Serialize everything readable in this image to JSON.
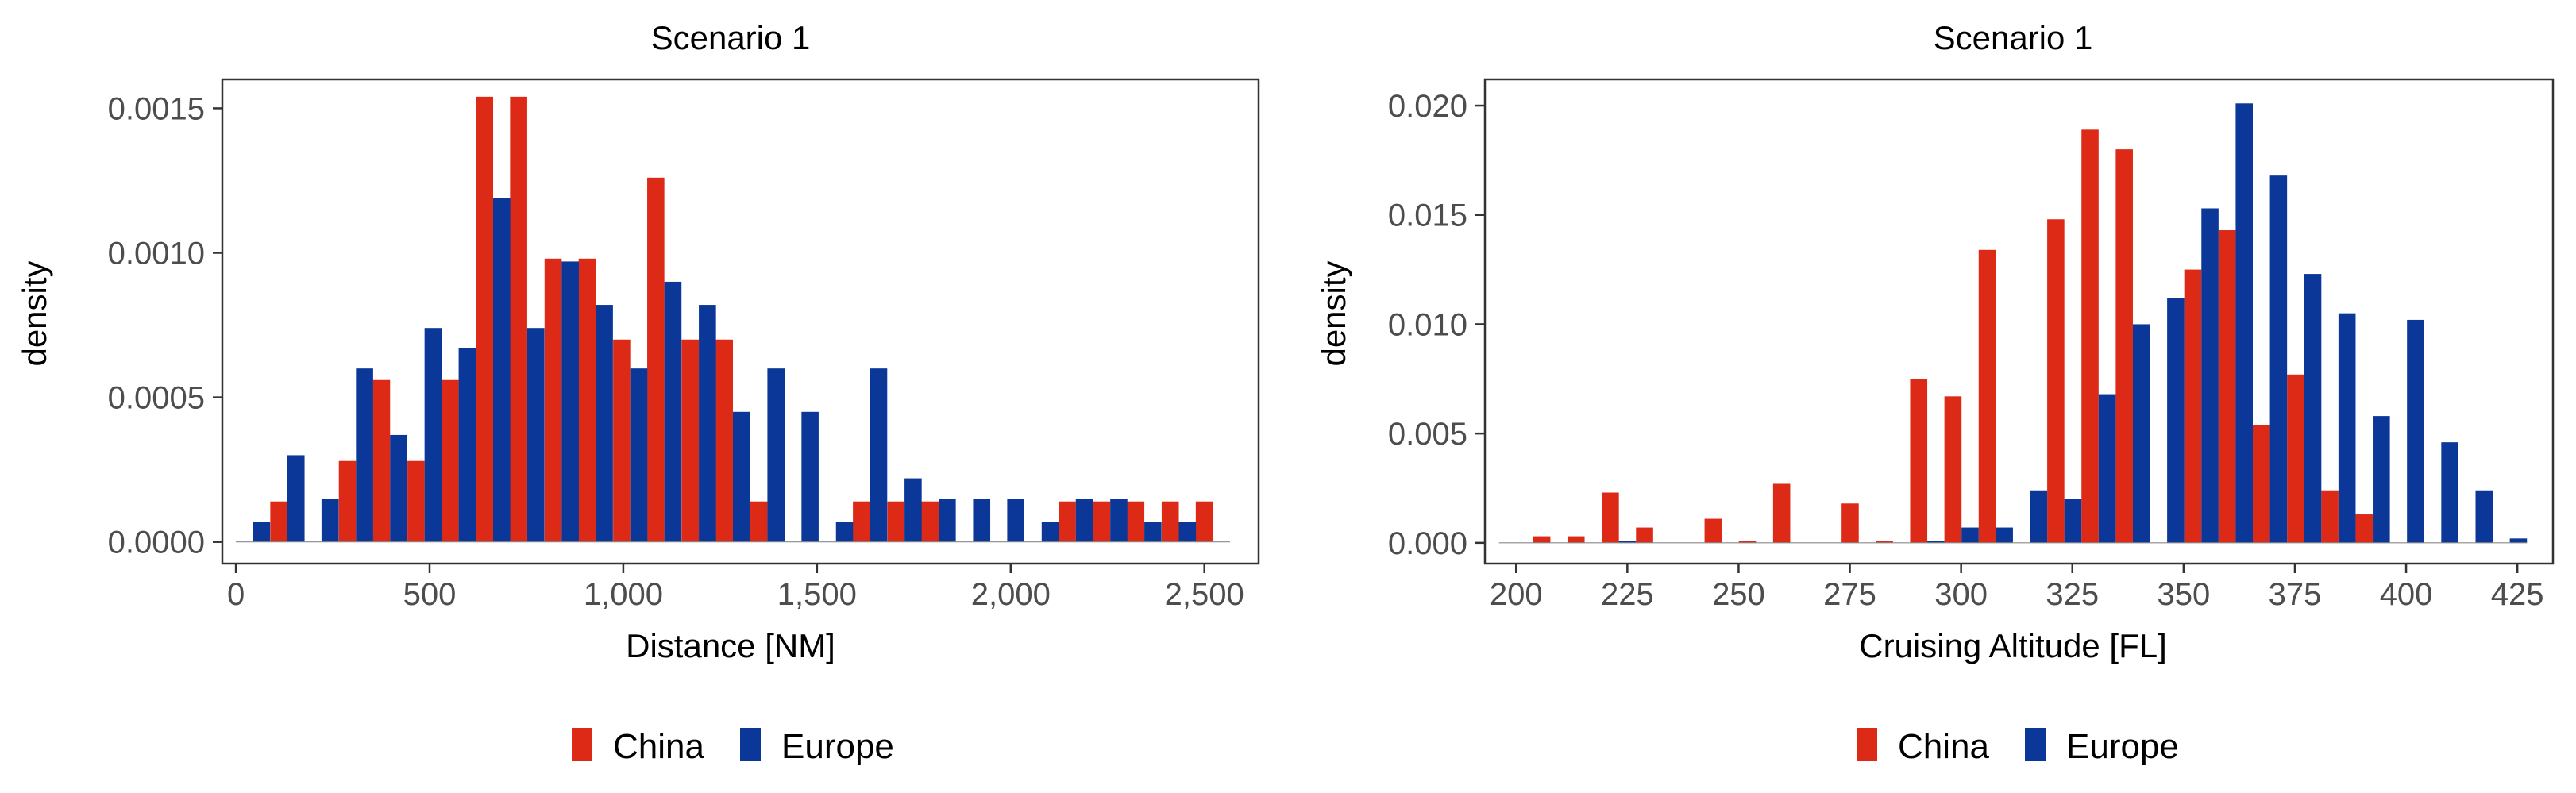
{
  "colors": {
    "China": "#DD2A17",
    "Europe": "#0A3798"
  },
  "chart_data": [
    {
      "type": "bar",
      "title": "Scenario 1",
      "xlabel": "Distance [NM]",
      "ylabel": "density",
      "xlim": [
        -35,
        2640
      ],
      "ylim": [
        -7.5e-05,
        0.0016
      ],
      "xticks": [
        0,
        500,
        1000,
        1500,
        2000,
        2500
      ],
      "xtick_labels": [
        "0",
        "500",
        "1,000",
        "1,500",
        "2,000",
        "2,500"
      ],
      "yticks": [
        0,
        0.0005,
        0.001,
        0.0015
      ],
      "ytick_labels": [
        "0.0000",
        "0.0005",
        "0.0010",
        "0.0015"
      ],
      "bin_width": 88.5,
      "x": [
        44,
        133,
        221,
        310,
        398,
        487,
        575,
        664,
        752,
        841,
        929,
        1018,
        1106,
        1195,
        1283,
        1372,
        1460,
        1549,
        1637,
        1726,
        1814,
        1903,
        1991,
        2080,
        2168,
        2257,
        2345,
        2434,
        2522
      ],
      "grid": false,
      "legend": "bottom",
      "series": [
        {
          "name": "China",
          "values": [
            0,
            0.00014,
            0,
            0.00028,
            0.00056,
            0.00028,
            0.00056,
            0.00154,
            0.00154,
            0.00098,
            0.00098,
            0.0007,
            0.00126,
            0.0007,
            0.0007,
            0.00014,
            0,
            0,
            0.00014,
            0.00014,
            0.00014,
            0,
            0,
            0,
            0.00014,
            0.00014,
            0.00014,
            0.00014,
            0.00014
          ]
        },
        {
          "name": "Europe",
          "values": [
            7e-05,
            0.0003,
            0.00015,
            0.0006,
            0.00037,
            0.00074,
            0.00067,
            0.00119,
            0.00074,
            0.00097,
            0.00082,
            0.0006,
            0.0009,
            0.00082,
            0.00045,
            0.0006,
            0.00045,
            7e-05,
            0.0006,
            0.00022,
            0.00015,
            0.00015,
            0.00015,
            7e-05,
            0.00015,
            0.00015,
            7e-05,
            7e-05,
            0
          ]
        }
      ]
    },
    {
      "type": "bar",
      "title": "Scenario 1",
      "xlabel": "Cruising Altitude [FL]",
      "ylabel": "density",
      "xlim": [
        193,
        433
      ],
      "ylim": [
        -0.00095,
        0.0212
      ],
      "xticks": [
        200,
        225,
        250,
        275,
        300,
        325,
        350,
        375,
        400,
        425
      ],
      "xtick_labels": [
        "200",
        "225",
        "250",
        "275",
        "300",
        "325",
        "350",
        "375",
        "400",
        "425"
      ],
      "yticks": [
        0,
        0.005,
        0.01,
        0.015,
        0.02
      ],
      "ytick_labels": [
        "0.000",
        "0.005",
        "0.010",
        "0.015",
        "0.020"
      ],
      "bin_width": 7.7,
      "x": [
        200,
        207.7,
        215.4,
        223.1,
        230.8,
        238.5,
        246.2,
        253.9,
        261.6,
        269.3,
        277,
        284.7,
        292.4,
        300.1,
        307.8,
        315.5,
        323.2,
        330.9,
        338.6,
        346.3,
        354,
        361.7,
        369.4,
        377.1,
        384.8,
        392.5,
        400.2,
        407.9,
        415.6,
        423.3
      ],
      "grid": false,
      "legend": "bottom",
      "series": [
        {
          "name": "China",
          "values": [
            0,
            0.0003,
            0.0003,
            0.0023,
            0.0007,
            0,
            0.0011,
            0.0001,
            0.0027,
            0,
            0.0018,
            0.0001,
            0.0075,
            0.0067,
            0.0134,
            0,
            0.0148,
            0.0189,
            0.018,
            0,
            0.0125,
            0.0143,
            0.0054,
            0.0077,
            0.0024,
            0.0013,
            0,
            0,
            0,
            0
          ]
        },
        {
          "name": "Europe",
          "values": [
            0,
            0,
            0,
            0.0001,
            0,
            0,
            0,
            0,
            0,
            0,
            0,
            0,
            0.0001,
            0.0007,
            0.0007,
            0.0024,
            0.002,
            0.0068,
            0.01,
            0.0112,
            0.0153,
            0.0201,
            0.0168,
            0.0123,
            0.0105,
            0.0058,
            0.0102,
            0.0046,
            0.0024,
            0.0002
          ]
        }
      ]
    }
  ]
}
